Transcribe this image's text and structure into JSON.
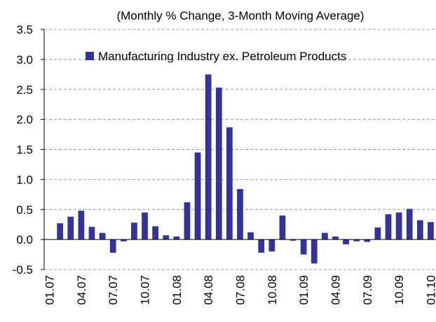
{
  "chart_data": {
    "type": "bar",
    "title": "(Monthly % Change, 3-Month Moving Average)",
    "categories": [
      "01.07",
      null,
      null,
      "04.07",
      null,
      null,
      "07.07",
      null,
      null,
      "10.07",
      null,
      null,
      "01.08",
      null,
      null,
      "04.08",
      null,
      null,
      "07.08",
      null,
      null,
      "10.08",
      null,
      null,
      "01.09",
      null,
      null,
      "04.09",
      null,
      null,
      "07.09",
      null,
      null,
      "10.09",
      null,
      null,
      "01.10"
    ],
    "series": [
      {
        "name": "Manufacturing Industry ex. Petroleum Products",
        "color": "#333399",
        "values": [
          0.0,
          0.27,
          0.38,
          0.48,
          0.21,
          0.11,
          -0.22,
          -0.03,
          0.28,
          0.45,
          0.22,
          0.07,
          0.05,
          0.62,
          1.45,
          2.75,
          2.53,
          1.87,
          0.84,
          0.12,
          -0.22,
          -0.2,
          0.4,
          -0.02,
          -0.25,
          -0.4,
          0.11,
          0.05,
          -0.08,
          -0.03,
          -0.04,
          0.2,
          0.42,
          0.45,
          0.51,
          0.32,
          0.29
        ]
      }
    ],
    "ylim": [
      -0.5,
      3.5
    ],
    "yticks": [
      -0.5,
      {
        "value": 0,
        "label": "0.0"
      },
      0.5,
      {
        "value": 1,
        "label": "1.0"
      },
      1.5,
      {
        "value": 2,
        "label": "2.0"
      },
      2.5,
      {
        "value": 3,
        "label": "3.0"
      },
      3.5
    ],
    "grid": true,
    "legend": "top"
  }
}
